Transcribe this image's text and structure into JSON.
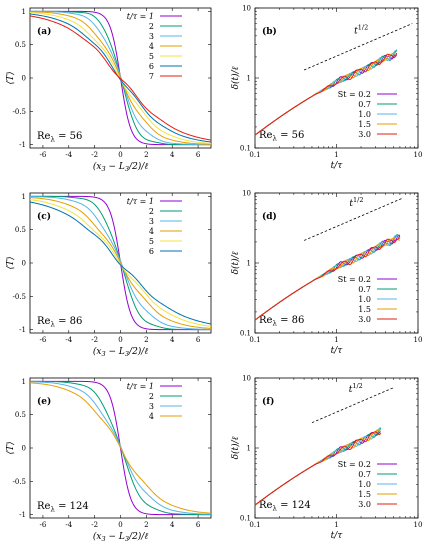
{
  "rows": [
    {
      "left": {
        "panel_label": "(a)",
        "re_label": "Re",
        "re_sub": "λ",
        "re_value": " = 56",
        "legend_title_lhs": "t/τ = ",
        "chart_data": {
          "type": "line",
          "xlabel": "(x3 − L3/2)/ℓ",
          "ylabel": "⟨T⟩",
          "xlim": [
            -7,
            7
          ],
          "ylim": [
            -1.05,
            1.05
          ],
          "xticks": [
            -6,
            -4,
            -2,
            0,
            2,
            4,
            6
          ],
          "yticks": [
            -1,
            -0.5,
            0,
            0.5,
            1
          ],
          "series": [
            {
              "name": "1",
              "color": "#9400d3",
              "width": 0.8
            },
            {
              "name": "2",
              "color": "#009e73",
              "width": 1.3
            },
            {
              "name": "3",
              "color": "#56b4e9",
              "width": 1.8
            },
            {
              "name": "4",
              "color": "#e69f00",
              "width": 2.4
            },
            {
              "name": "5",
              "color": "#f0e442",
              "width": 3.0
            },
            {
              "name": "6",
              "color": "#0072b2",
              "width": 3.6
            },
            {
              "name": "7",
              "color": "#e51e10",
              "width": 4.2
            }
          ]
        }
      },
      "right": {
        "panel_label": "(b)",
        "re_label": "Re",
        "re_sub": "λ",
        "re_value": " = 56",
        "slope_label": "t",
        "slope_exp": "1/2",
        "chart_data": {
          "type": "line",
          "scale": "log-log",
          "xlabel": "t/τ",
          "ylabel": "δ(t)/ℓ",
          "xlim": [
            0.1,
            10
          ],
          "ylim": [
            0.1,
            10
          ],
          "xticks": [
            0.1,
            1,
            10
          ],
          "yticks": [
            0.1,
            1,
            10
          ],
          "xtick_labels": [
            "0.1",
            "1",
            "10"
          ],
          "ytick_labels": [
            "0.1",
            "1",
            "10"
          ],
          "t_end": 5.5,
          "reference": {
            "t_from": 0.4,
            "t_to": 8.5,
            "y0": 1.3
          },
          "series": [
            {
              "name": "St = 0.2",
              "color": "#9400d3",
              "phase": 0
            },
            {
              "name": "0.7",
              "color": "#009e73",
              "phase": 1
            },
            {
              "name": "1.0",
              "color": "#56b4e9",
              "phase": 2
            },
            {
              "name": "1.5",
              "color": "#e69f00",
              "phase": 3
            },
            {
              "name": "3.0",
              "color": "#e51e10",
              "phase": 4
            }
          ]
        }
      }
    },
    {
      "left": {
        "panel_label": "(c)",
        "re_label": "Re",
        "re_sub": "λ",
        "re_value": " = 86",
        "legend_title_lhs": "t/τ = ",
        "chart_data": {
          "type": "line",
          "xlabel": "(x3 − L3/2)/ℓ",
          "ylabel": "⟨T⟩",
          "xlim": [
            -7,
            7
          ],
          "ylim": [
            -1.05,
            1.05
          ],
          "xticks": [
            -6,
            -4,
            -2,
            0,
            2,
            4,
            6
          ],
          "yticks": [
            -1,
            -0.5,
            0,
            0.5,
            1
          ],
          "series": [
            {
              "name": "1",
              "color": "#9400d3",
              "width": 0.8
            },
            {
              "name": "2",
              "color": "#009e73",
              "width": 1.5
            },
            {
              "name": "3",
              "color": "#56b4e9",
              "width": 2.2
            },
            {
              "name": "4",
              "color": "#e69f00",
              "width": 3.0
            },
            {
              "name": "5",
              "color": "#f0e442",
              "width": 3.8
            },
            {
              "name": "6",
              "color": "#0072b2",
              "width": 4.5
            }
          ]
        }
      },
      "right": {
        "panel_label": "(d)",
        "re_label": "Re",
        "re_sub": "λ",
        "re_value": " = 86",
        "slope_label": "t",
        "slope_exp": "1/2",
        "chart_data": {
          "type": "line",
          "scale": "log-log",
          "xlabel": "t/τ",
          "ylabel": "δ(t)/ℓ",
          "xlim": [
            0.1,
            10
          ],
          "ylim": [
            0.1,
            10
          ],
          "xticks": [
            0.1,
            1,
            10
          ],
          "yticks": [
            0.1,
            1,
            10
          ],
          "xtick_labels": [
            "0.1",
            "1",
            "10"
          ],
          "ytick_labels": [
            "0.1",
            "1",
            "10"
          ],
          "t_end": 6,
          "reference": {
            "t_from": 0.4,
            "t_to": 6.5,
            "y0": 2.1
          },
          "series": [
            {
              "name": "St = 0.2",
              "color": "#9400d3",
              "phase": 0
            },
            {
              "name": "0.7",
              "color": "#009e73",
              "phase": 1
            },
            {
              "name": "1.0",
              "color": "#56b4e9",
              "phase": 2
            },
            {
              "name": "1.5",
              "color": "#e69f00",
              "phase": 3
            },
            {
              "name": "3.0",
              "color": "#e51e10",
              "phase": 4
            }
          ]
        }
      }
    },
    {
      "left": {
        "panel_label": "(e)",
        "re_label": "Re",
        "re_sub": "λ",
        "re_value": " = 124",
        "legend_title_lhs": "t/τ = ",
        "chart_data": {
          "type": "line",
          "xlabel": "(x3 − L3/2)/ℓ",
          "ylabel": "⟨T⟩",
          "xlim": [
            -7,
            7
          ],
          "ylim": [
            -1.05,
            1.05
          ],
          "xticks": [
            -6,
            -4,
            -2,
            0,
            2,
            4,
            6
          ],
          "yticks": [
            -1,
            -0.5,
            0,
            0.5,
            1
          ],
          "series": [
            {
              "name": "1",
              "color": "#9400d3",
              "width": 0.8
            },
            {
              "name": "2",
              "color": "#009e73",
              "width": 1.7
            },
            {
              "name": "3",
              "color": "#56b4e9",
              "width": 2.4
            },
            {
              "name": "4",
              "color": "#e69f00",
              "width": 3.1
            }
          ]
        }
      },
      "right": {
        "panel_label": "(f)",
        "re_label": "Re",
        "re_sub": "λ",
        "re_value": " = 124",
        "slope_label": "t",
        "slope_exp": "1/2",
        "chart_data": {
          "type": "line",
          "scale": "log-log",
          "xlabel": "t/τ",
          "ylabel": "δ(t)/ℓ",
          "xlim": [
            0.1,
            10
          ],
          "ylim": [
            0.1,
            10
          ],
          "xticks": [
            0.1,
            1,
            10
          ],
          "yticks": [
            0.1,
            1,
            10
          ],
          "xtick_labels": [
            "0.1",
            "1",
            "10"
          ],
          "ytick_labels": [
            "0.1",
            "1",
            "10"
          ],
          "t_end": 3.5,
          "reference": {
            "t_from": 0.5,
            "t_to": 5,
            "y0": 2.3
          },
          "series": [
            {
              "name": "St = 0.2",
              "color": "#9400d3",
              "phase": 0
            },
            {
              "name": "0.7",
              "color": "#009e73",
              "phase": 1
            },
            {
              "name": "1.0",
              "color": "#56b4e9",
              "phase": 2
            },
            {
              "name": "1.5",
              "color": "#e69f00",
              "phase": 3
            },
            {
              "name": "3.0",
              "color": "#e51e10",
              "phase": 4
            }
          ]
        }
      }
    }
  ]
}
